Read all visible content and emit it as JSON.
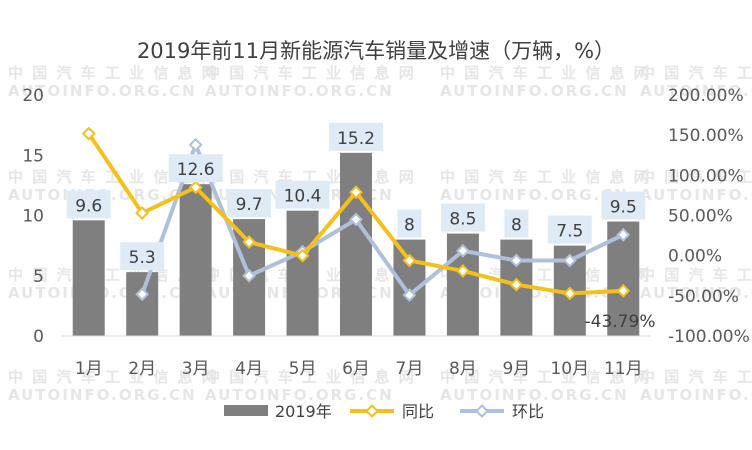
{
  "chart_data": {
    "type": "bar",
    "title": "2019年前11月新能源汽车销量及增速（万辆，%）",
    "categories": [
      "1月",
      "2月",
      "3月",
      "4月",
      "5月",
      "6月",
      "7月",
      "8月",
      "9月",
      "10月",
      "11月"
    ],
    "series": [
      {
        "name": "2019年",
        "type": "bar",
        "axis": "left",
        "color": "#7f7f7f",
        "values": [
          9.6,
          5.3,
          12.6,
          9.7,
          10.4,
          15.2,
          8,
          8.5,
          8,
          7.5,
          9.5
        ],
        "labels": [
          "9.6",
          "5.3",
          "12.6",
          "9.7",
          "10.4",
          "15.2",
          "8",
          "8.5",
          "8",
          "7.5",
          "9.5"
        ]
      },
      {
        "name": "同比",
        "type": "line",
        "axis": "right",
        "color": "#f5bf1c",
        "values": [
          152,
          53,
          85,
          17,
          0,
          79,
          -6,
          -19,
          -36,
          -47,
          -43.79
        ]
      },
      {
        "name": "环比",
        "type": "line",
        "axis": "right",
        "color": "#afc0da",
        "values": [
          null,
          -48,
          138,
          -25,
          5,
          45,
          -49,
          6,
          -6,
          -6,
          26
        ]
      }
    ],
    "left_axis": {
      "min": 0,
      "max": 20,
      "ticks": [
        "0",
        "5",
        "10",
        "15",
        "20"
      ]
    },
    "right_axis": {
      "min": -100,
      "max": 200,
      "ticks": [
        "-100.00%",
        "-50.00%",
        "0.00%",
        "50.00%",
        "100.00%",
        "150.00%",
        "200.00%"
      ]
    },
    "annotation": "-43.79%",
    "legend_position": "bottom",
    "grid": false
  },
  "watermark": {
    "line1": "中 国 汽 车 工 业 信 息 网",
    "line2": "AUTOINFO.ORG.CN"
  }
}
